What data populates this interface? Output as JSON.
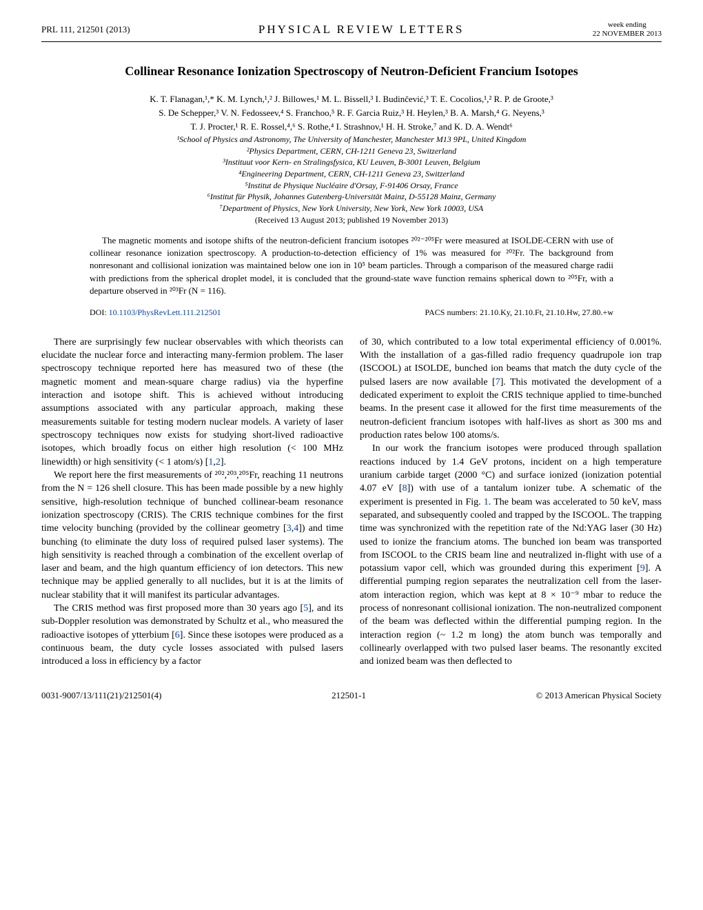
{
  "header": {
    "left": "PRL 111, 212501 (2013)",
    "center": "PHYSICAL REVIEW LETTERS",
    "right_top": "week ending",
    "right_bottom": "22 NOVEMBER 2013"
  },
  "title": "Collinear Resonance Ionization Spectroscopy of Neutron-Deficient Francium Isotopes",
  "authors_line1": "K. T. Flanagan,¹,* K. M. Lynch,¹,² J. Billowes,¹ M. L. Bissell,³ I. Budinčević,³ T. E. Cocolios,¹,² R. P. de Groote,³",
  "authors_line2": "S. De Schepper,³ V. N. Fedosseev,⁴ S. Franchoo,⁵ R. F. Garcia Ruiz,³ H. Heylen,³ B. A. Marsh,⁴ G. Neyens,³",
  "authors_line3": "T. J. Procter,¹ R. E. Rossel,⁴,⁶ S. Rothe,⁴ I. Strashnov,¹ H. H. Stroke,⁷ and K. D. A. Wendt⁶",
  "affil1": "¹School of Physics and Astronomy, The University of Manchester, Manchester M13 9PL, United Kingdom",
  "affil2": "²Physics Department, CERN, CH-1211 Geneva 23, Switzerland",
  "affil3": "³Instituut voor Kern- en Stralingsfysica, KU Leuven, B-3001 Leuven, Belgium",
  "affil4": "⁴Engineering Department, CERN, CH-1211 Geneva 23, Switzerland",
  "affil5": "⁵Institut de Physique Nucléaire d'Orsay, F-91406 Orsay, France",
  "affil6": "⁶Institut für Physik, Johannes Gutenberg-Universität Mainz, D-55128 Mainz, Germany",
  "affil7": "⁷Department of Physics, New York University, New York, New York 10003, USA",
  "received": "(Received 13 August 2013; published 19 November 2013)",
  "abstract": "The magnetic moments and isotope shifts of the neutron-deficient francium isotopes ²⁰²⁻²⁰⁵Fr were measured at ISOLDE-CERN with use of collinear resonance ionization spectroscopy. A production-to-detection efficiency of 1% was measured for ²⁰²Fr. The background from nonresonant and collisional ionization was maintained below one ion in 10⁵ beam particles. Through a comparison of the measured charge radii with predictions from the spherical droplet model, it is concluded that the ground-state wave function remains spherical down to ²⁰⁵Fr, with a departure observed in ²⁰³Fr (N = 116).",
  "doi_label": "DOI: ",
  "doi": "10.1103/PhysRevLett.111.212501",
  "pacs": "PACS numbers: 21.10.Ky, 21.10.Ft, 21.10.Hw, 27.80.+w",
  "col1_p1": "There are surprisingly few nuclear observables with which theorists can elucidate the nuclear force and interacting many-fermion problem. The laser spectroscopy technique reported here has measured two of these (the magnetic moment and mean-square charge radius) via the hyperfine interaction and isotope shift. This is achieved without introducing assumptions associated with any particular approach, making these measurements suitable for testing modern nuclear models. A variety of laser spectroscopy techniques now exists for studying short-lived radioactive isotopes, which broadly focus on either high resolution (< 100 MHz linewidth) or high sensitivity (< 1 atom/s) [",
  "col1_ref1": "1",
  "col1_ref2": "2",
  "col1_p1_end": "].",
  "col1_p2a": "We report here the first measurements of ²⁰²,²⁰³,²⁰⁵Fr, reaching 11 neutrons from the N = 126 shell closure. This has been made possible by a new highly sensitive, high-resolution technique of bunched collinear-beam resonance ionization spectroscopy (CRIS). The CRIS technique combines for the first time velocity bunching (provided by the collinear geometry [",
  "col1_ref3": "3",
  "col1_ref4": "4",
  "col1_p2b": "]) and time bunching (to eliminate the duty loss of required pulsed laser systems). The high sensitivity is reached through a combination of the excellent overlap of laser and beam, and the high quantum efficiency of ion detectors. This new technique may be applied generally to all nuclides, but it is at the limits of nuclear stability that it will manifest its particular advantages.",
  "col1_p3a": "The CRIS method was first proposed more than 30 years ago [",
  "col1_ref5": "5",
  "col1_p3b": "], and its sub-Doppler resolution was demonstrated by Schultz et al., who measured the radioactive isotopes of ytterbium [",
  "col1_ref6": "6",
  "col1_p3c": "]. Since these isotopes were produced as a continuous beam, the duty cycle losses associated with pulsed lasers introduced a loss in efficiency by a factor",
  "col2_p1a": "of 30, which contributed to a low total experimental efficiency of 0.001%. With the installation of a gas-filled radio frequency quadrupole ion trap (ISCOOL) at ISOLDE, bunched ion beams that match the duty cycle of the pulsed lasers are now available [",
  "col2_ref7": "7",
  "col2_p1b": "]. This motivated the development of a dedicated experiment to exploit the CRIS technique applied to time-bunched beams. In the present case it allowed for the first time measurements of the neutron-deficient francium isotopes with half-lives as short as 300 ms and production rates below 100 atoms/s.",
  "col2_p2a": "In our work the francium isotopes were produced through spallation reactions induced by 1.4 GeV protons, incident on a high temperature uranium carbide target (2000 °C) and surface ionized (ionization potential 4.07 eV [",
  "col2_ref8": "8",
  "col2_p2b": "]) with use of a tantalum ionizer tube. A schematic of the experiment is presented in Fig. ",
  "col2_fig1": "1",
  "col2_p2c": ". The beam was accelerated to 50 keV, mass separated, and subsequently cooled and trapped by the ISCOOL. The trapping time was synchronized with the repetition rate of the Nd:YAG laser (30 Hz) used to ionize the francium atoms. The bunched ion beam was transported from ISCOOL to the CRIS beam line and neutralized in-flight with use of a potassium vapor cell, which was grounded during this experiment [",
  "col2_ref9": "9",
  "col2_p2d": "]. A differential pumping region separates the neutralization cell from the laser-atom interaction region, which was kept at 8 × 10⁻⁹ mbar to reduce the process of nonresonant collisional ionization. The non-neutralized component of the beam was deflected within the differential pumping region. In the interaction region (~ 1.2 m long) the atom bunch was temporally and collinearly overlapped with two pulsed laser beams. The resonantly excited and ionized beam was then deflected to",
  "footer_left": "0031-9007/13/111(21)/212501(4)",
  "footer_center": "212501-1",
  "footer_right": "© 2013 American Physical Society"
}
